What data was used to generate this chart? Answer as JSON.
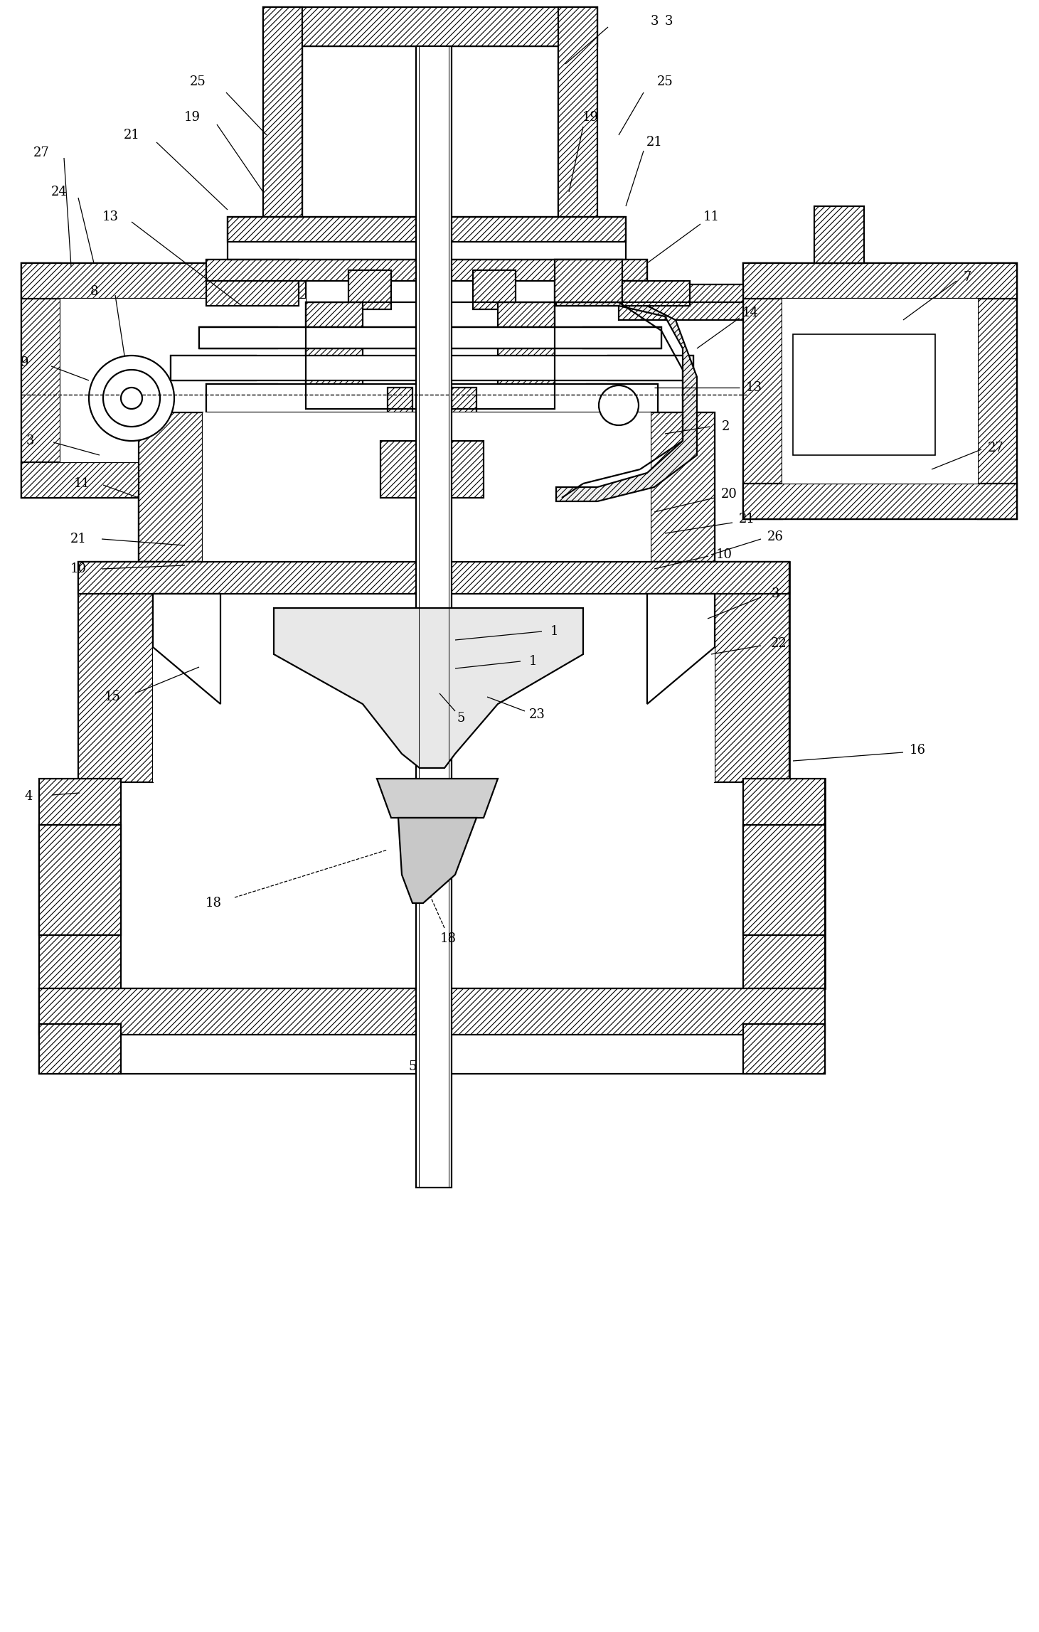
{
  "bg": "#ffffff",
  "lc": "#000000",
  "figsize": [
    14.61,
    22.95
  ],
  "dpi": 100,
  "fs": 13,
  "lw": 1.6
}
